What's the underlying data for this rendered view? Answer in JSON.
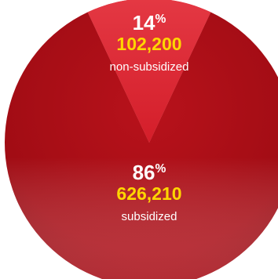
{
  "chart_data": {
    "type": "pie",
    "slices": [
      {
        "label": "non-subsidized",
        "percent": 14,
        "count": "102,200",
        "color": "#e0303a"
      },
      {
        "label": "subsidized",
        "percent": 86,
        "count": "626,210",
        "color": "#a80c14"
      }
    ],
    "count_color": "#ffd600",
    "percent_symbol": "%"
  }
}
